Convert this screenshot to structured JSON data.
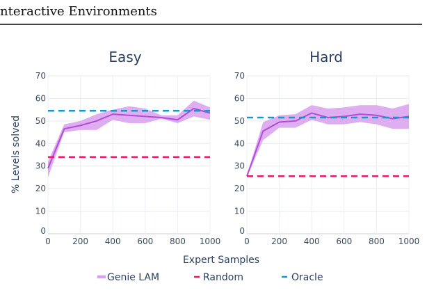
{
  "header": {
    "text": "nteractive Environments"
  },
  "chart_data": {
    "type": "line",
    "xlabel": "Expert Samples",
    "ylabel": "% Levels solved",
    "xlim": [
      0,
      1000
    ],
    "ylim": [
      0,
      70
    ],
    "xticks": [
      0,
      200,
      400,
      600,
      800,
      1000
    ],
    "yticks": [
      0,
      10,
      20,
      30,
      40,
      50,
      60,
      70
    ],
    "grid": true,
    "legend_position": "bottom",
    "legend": [
      "Genie LAM",
      "Random",
      "Oracle"
    ],
    "colors": {
      "genie": "#b14cd8",
      "genie_band": "#d9a0ef",
      "random": "#f0186a",
      "oracle": "#1a97c8"
    },
    "panels": [
      {
        "title": "Easy",
        "series": [
          {
            "name": "Genie LAM",
            "x": [
              0,
              100,
              200,
              300,
              400,
              500,
              600,
              700,
              800,
              900,
              1000
            ],
            "y": [
              29,
              46.5,
              48,
              50,
              53,
              52.5,
              52,
              51.5,
              50.5,
              55.5,
              53.5
            ],
            "lower": [
              25,
              45,
              46,
              46,
              50.5,
              49,
              49,
              51,
              49,
              52,
              50.5
            ],
            "upper": [
              32,
              48.5,
              50,
              53,
              55,
              56.5,
              55.5,
              52.5,
              52.5,
              59,
              56
            ]
          },
          {
            "name": "Random",
            "value": 34
          },
          {
            "name": "Oracle",
            "value": 54.5
          }
        ]
      },
      {
        "title": "Hard",
        "series": [
          {
            "name": "Genie LAM",
            "x": [
              0,
              100,
              200,
              300,
              400,
              500,
              600,
              700,
              800,
              900,
              1000
            ],
            "y": [
              25.5,
              45.5,
              49.5,
              50,
              53.5,
              51.5,
              52,
              53,
              52.5,
              51,
              52
            ],
            "lower": [
              25,
              41.5,
              47,
              47,
              50.5,
              48.5,
              48.5,
              49.5,
              48.5,
              46.5,
              46.5
            ],
            "upper": [
              26,
              49.5,
              52.5,
              53,
              57,
              55.5,
              56,
              57,
              57,
              55.5,
              57.5
            ]
          },
          {
            "name": "Random",
            "value": 25.5
          },
          {
            "name": "Oracle",
            "value": 51.5
          }
        ]
      }
    ]
  }
}
